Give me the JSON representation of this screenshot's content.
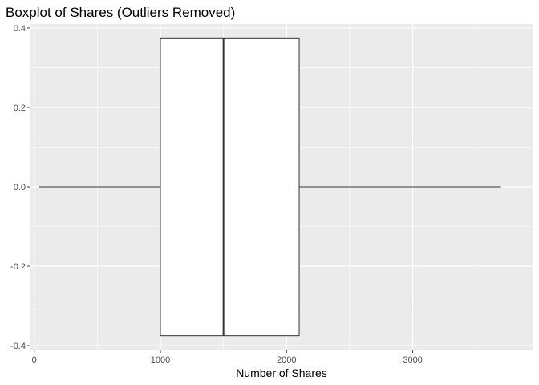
{
  "chart_data": {
    "type": "boxplot",
    "title": "Boxplot of Shares (Outliers Removed)",
    "xlabel": "Number of Shares",
    "ylabel": "",
    "xlim": [
      -30,
      3950
    ],
    "ylim": [
      -0.41,
      0.41
    ],
    "x_ticks": [
      0,
      1000,
      2000,
      3000
    ],
    "x_tick_labels": [
      "0",
      "1000",
      "2000",
      "3000"
    ],
    "y_ticks": [
      -0.4,
      -0.2,
      0.0,
      0.2,
      0.4
    ],
    "y_tick_labels": [
      "-0.4",
      "-0.2",
      "0.0",
      "0.2",
      "0.4"
    ],
    "box": {
      "whisker_low": 40,
      "q1": 1000,
      "median": 1500,
      "q3": 2100,
      "whisker_high": 3700,
      "y_center": 0.0,
      "half_width": 0.375
    },
    "panel_background": "#ebebeb",
    "grid_color": "#ffffff",
    "box_fill": "#ffffff",
    "line_color": "#333333",
    "grid": true,
    "legend": "none"
  }
}
